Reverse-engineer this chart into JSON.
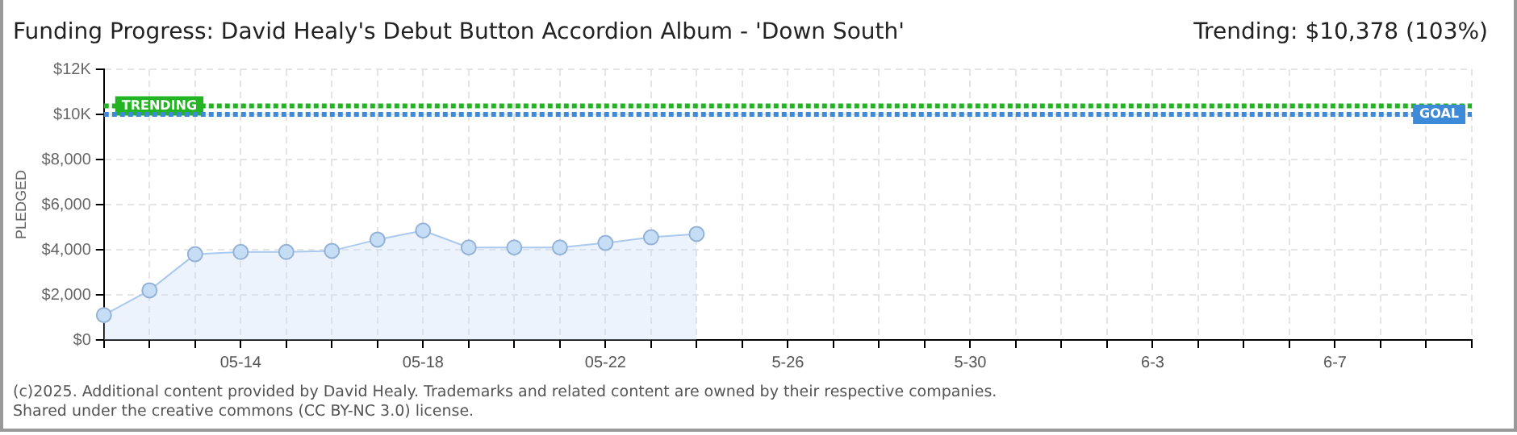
{
  "chart_data": {
    "type": "area",
    "title": "Funding Progress: David Healy's Debut Button Accordion Album - 'Down South'",
    "subtitle": "Trending:  $10,378 (103%)",
    "ylabel": "PLEDGED",
    "categories": [
      null,
      null,
      null,
      "05-14",
      null,
      null,
      null,
      "05-18",
      null,
      null,
      null,
      "05-22",
      null,
      null,
      null,
      "5-26",
      null,
      null,
      null,
      "5-30",
      null,
      null,
      null,
      "6-3",
      null,
      null,
      null,
      "6-7",
      null,
      null,
      null
    ],
    "series": [
      {
        "color": "#a9c9ee",
        "values": [
          1100,
          2200,
          3800,
          3900,
          3900,
          3950,
          4450,
          4850,
          4100,
          4100,
          4100,
          4300,
          4550,
          4700,
          null,
          null,
          null,
          null,
          null,
          null,
          null,
          null,
          null,
          null,
          null,
          null,
          null,
          null,
          null,
          null,
          null
        ]
      }
    ],
    "ylim": [
      0,
      12000
    ],
    "yticks": [
      {
        "value": 0,
        "label": "$0"
      },
      {
        "value": 2000,
        "label": "$2,000"
      },
      {
        "value": 4000,
        "label": "$4,000"
      },
      {
        "value": 6000,
        "label": "$6,000"
      },
      {
        "value": 8000,
        "label": "$8,000"
      },
      {
        "value": 10000,
        "label": "$10K"
      },
      {
        "value": 12000,
        "label": "$12K"
      }
    ],
    "ref_lines": [
      {
        "axis": "y",
        "value": 10378,
        "label": "TRENDING",
        "color": "#22b422",
        "line_style": "dotted"
      },
      {
        "axis": "y",
        "value": 10000,
        "label": "GOAL",
        "color": "#3d8ad8",
        "line_style": "dotted"
      }
    ],
    "grid": true,
    "legend": false,
    "marker": "circle",
    "line_style": "solid",
    "annotations": [
      "(c)2025. Additional content provided by David Healy. Trademarks and related content are owned by their respective companies.",
      "Shared under the creative commons (CC BY-NC 3.0) license."
    ]
  }
}
